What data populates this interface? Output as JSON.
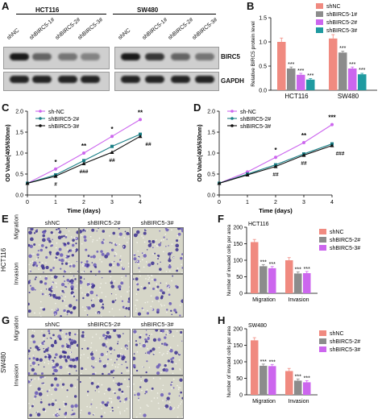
{
  "panels": {
    "A": {
      "label": "A",
      "groups": [
        "HCT116",
        "SW480"
      ],
      "lanes": [
        "shNC",
        "shBIRC5-1#",
        "shBIRC5-2#",
        "shBIRC5-3#"
      ],
      "proteins": [
        "BIRC5",
        "GAPDH"
      ],
      "birc5_band_intensity": [
        [
          1.0,
          0.45,
          0.32,
          0.22
        ],
        [
          1.0,
          0.78,
          0.45,
          0.32
        ]
      ]
    },
    "B": {
      "label": "B",
      "ylabel": "Relative BIRC5 protein level",
      "legend": [
        "shNC",
        "shBIRC5-1#",
        "shBIRC5-2#",
        "shBIRC5-3#"
      ],
      "colors": [
        "#f08a80",
        "#8c8c8c",
        "#cc66ee",
        "#1f9aa0"
      ]
    },
    "C": {
      "label": "C",
      "xlabel": "Time (days)",
      "ylabel": "OD Value(405/630nm)",
      "legend": [
        "sh-NC",
        "shBIRC5-2#",
        "shBIRC5-3#"
      ],
      "sig_star": [
        "*",
        "**",
        "*",
        "**"
      ],
      "sig_hash": [
        "#",
        "###",
        "##",
        "##"
      ]
    },
    "D": {
      "label": "D",
      "xlabel": "Time (days)",
      "ylabel": "OD Value(405/630nm)",
      "legend": [
        "sh-NC",
        "shBIRC5-2#",
        "shBIRC5-3#"
      ],
      "sig_star": [
        "*",
        "**",
        "***"
      ],
      "sig_hash": [
        "##",
        "##",
        "###"
      ]
    },
    "E": {
      "label": "E",
      "columns": [
        "shNC",
        "shBIRC5-2#",
        "shBIRC5-3#"
      ],
      "rows": [
        "Migration",
        "Invasion"
      ],
      "cell_line": "HCT116"
    },
    "F": {
      "label": "F",
      "title": "HCT116",
      "ylabel": "Number of invaded cells per area",
      "legend": [
        "shNC",
        "shBIRC5-2#",
        "shBIRC5-3#"
      ],
      "colors": [
        "#f08a80",
        "#8c8c8c",
        "#cc66ee"
      ],
      "sig": [
        "***",
        "***",
        "***",
        "***"
      ]
    },
    "G": {
      "label": "G",
      "columns": [
        "shNC",
        "shBIRC5-2#",
        "shBIRC5-3#"
      ],
      "rows": [
        "Migration",
        "Invasion"
      ],
      "cell_line": "SW480"
    },
    "H": {
      "label": "H",
      "title": "SW480",
      "ylabel": "Number of invaded cells per area",
      "legend": [
        "shNC",
        "shBIRC5-2#",
        "shBIRC5-3#"
      ],
      "colors": [
        "#f08a80",
        "#8c8c8c",
        "#cc66ee"
      ],
      "sig": [
        "***",
        "***",
        "***",
        "***"
      ]
    }
  },
  "chart_data": [
    {
      "id": "B",
      "type": "bar",
      "categories": [
        "HCT116",
        "SW480"
      ],
      "series": [
        {
          "name": "shNC",
          "values": [
            1.0,
            1.07
          ]
        },
        {
          "name": "shBIRC5-1#",
          "values": [
            0.45,
            0.78
          ]
        },
        {
          "name": "shBIRC5-2#",
          "values": [
            0.32,
            0.45
          ]
        },
        {
          "name": "shBIRC5-3#",
          "values": [
            0.22,
            0.33
          ]
        }
      ],
      "ylabel": "Relative BIRC5 protein level",
      "ylim": [
        0,
        1.5
      ],
      "yticks": [
        0.0,
        0.5,
        1.0,
        1.5
      ],
      "annotations": [
        "***",
        "***",
        "***",
        "***",
        "***",
        "***"
      ]
    },
    {
      "id": "C",
      "type": "line",
      "x": [
        0,
        1,
        2,
        3,
        4
      ],
      "series": [
        {
          "name": "sh-NC",
          "values": [
            0.28,
            0.62,
            1.0,
            1.4,
            1.8
          ]
        },
        {
          "name": "shBIRC5-2#",
          "values": [
            0.28,
            0.48,
            0.82,
            1.16,
            1.45
          ]
        },
        {
          "name": "shBIRC5-3#",
          "values": [
            0.28,
            0.45,
            0.75,
            1.02,
            1.4
          ]
        }
      ],
      "xlabel": "Time (days)",
      "ylabel": "OD Value(405/630nm)",
      "xlim": [
        0,
        4
      ],
      "ylim": [
        0,
        2.0
      ],
      "yticks": [
        0.0,
        0.5,
        1.0,
        1.5,
        2.0
      ]
    },
    {
      "id": "D",
      "type": "line",
      "x": [
        0,
        1,
        2,
        3,
        4
      ],
      "series": [
        {
          "name": "sh-NC",
          "values": [
            0.28,
            0.55,
            0.9,
            1.25,
            1.68
          ]
        },
        {
          "name": "shBIRC5-2#",
          "values": [
            0.28,
            0.5,
            0.72,
            0.98,
            1.22
          ]
        },
        {
          "name": "shBIRC5-3#",
          "values": [
            0.28,
            0.48,
            0.68,
            0.95,
            1.18
          ]
        }
      ],
      "xlabel": "Time (days)",
      "ylabel": "OD Value(405/630nm)",
      "xlim": [
        0,
        4
      ],
      "ylim": [
        0,
        2.0
      ],
      "yticks": [
        0.0,
        0.5,
        1.0,
        1.5,
        2.0
      ]
    },
    {
      "id": "F",
      "type": "bar",
      "title": "HCT116",
      "categories": [
        "Migration",
        "Invasion"
      ],
      "series": [
        {
          "name": "shNC",
          "values": [
            155,
            100
          ]
        },
        {
          "name": "shBIRC5-2#",
          "values": [
            82,
            60
          ]
        },
        {
          "name": "shBIRC5-3#",
          "values": [
            76,
            61
          ]
        }
      ],
      "ylabel": "Number of invaded cells per area",
      "ylim": [
        0,
        200
      ],
      "yticks": [
        0,
        50,
        100,
        150,
        200
      ]
    },
    {
      "id": "H",
      "type": "bar",
      "title": "SW480",
      "categories": [
        "Migration",
        "Invasion"
      ],
      "series": [
        {
          "name": "shNC",
          "values": [
            165,
            72
          ]
        },
        {
          "name": "shBIRC5-2#",
          "values": [
            88,
            43
          ]
        },
        {
          "name": "shBIRC5-3#",
          "values": [
            87,
            38
          ]
        }
      ],
      "ylabel": "Number of invaded cells per area",
      "ylim": [
        0,
        200
      ],
      "yticks": [
        0,
        50,
        100,
        150,
        200
      ]
    }
  ]
}
